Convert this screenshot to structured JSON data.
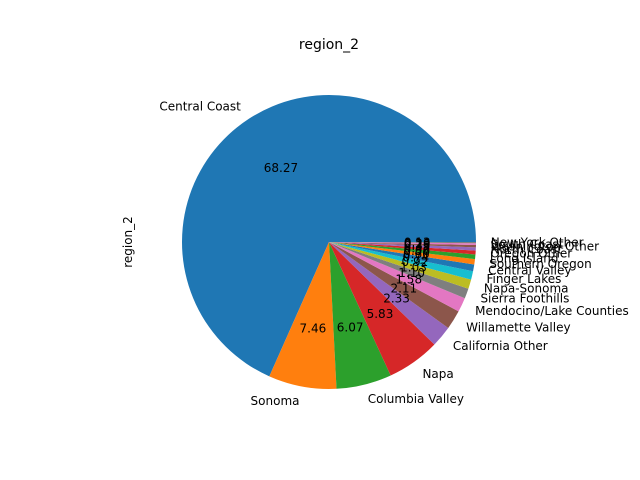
{
  "chart_data": {
    "type": "pie",
    "title": "region_2",
    "ylabel": "region_2",
    "start_angle_deg": 0,
    "direction": "counterclockwise",
    "slices": [
      {
        "label": "Central Coast",
        "value": 68.27,
        "pct_label": "68.27",
        "color": "#1f77b4"
      },
      {
        "label": "Sonoma",
        "value": 7.46,
        "pct_label": "7.46",
        "color": "#ff7f0e"
      },
      {
        "label": "Columbia Valley",
        "value": 6.07,
        "pct_label": "6.07",
        "color": "#2ca02c"
      },
      {
        "label": "Napa",
        "value": 5.83,
        "pct_label": "5.83",
        "color": "#d62728"
      },
      {
        "label": "California Other",
        "value": 2.33,
        "pct_label": "2.33",
        "color": "#9467bd"
      },
      {
        "label": "Willamette Valley",
        "value": 2.11,
        "pct_label": "2.11",
        "color": "#8c564b"
      },
      {
        "label": "Mendocino/Lake Counties",
        "value": 1.58,
        "pct_label": "1.58",
        "color": "#e377c2"
      },
      {
        "label": "Sierra Foothills",
        "value": 1.1,
        "pct_label": "1.10",
        "color": "#7f7f7f"
      },
      {
        "label": "Napa-Sonoma",
        "value": 1.03,
        "pct_label": "1.03",
        "color": "#bcbd22"
      },
      {
        "label": "Finger Lakes",
        "value": 0.92,
        "pct_label": "0.92",
        "color": "#17becf"
      },
      {
        "label": "Central Valley",
        "value": 0.74,
        "pct_label": "0.74",
        "color": "#1f77b4"
      },
      {
        "label": "Southern Oregon",
        "value": 0.6,
        "pct_label": "0.60",
        "color": "#ff7f0e"
      },
      {
        "label": "Long Island",
        "value": 0.5,
        "pct_label": "0.50",
        "color": "#2ca02c"
      },
      {
        "label": "Oregon Other",
        "value": 0.42,
        "pct_label": "0.42",
        "color": "#d62728"
      },
      {
        "label": "North Coast",
        "value": 0.35,
        "pct_label": "0.35",
        "color": "#9467bd"
      },
      {
        "label": "Washington Other",
        "value": 0.25,
        "pct_label": "0.25",
        "color": "#8c564b"
      },
      {
        "label": "South Coast",
        "value": 0.2,
        "pct_label": "0.20",
        "color": "#e377c2"
      },
      {
        "label": "New York Other",
        "value": 0.13,
        "pct_label": "0.13",
        "color": "#7f7f7f"
      }
    ]
  }
}
